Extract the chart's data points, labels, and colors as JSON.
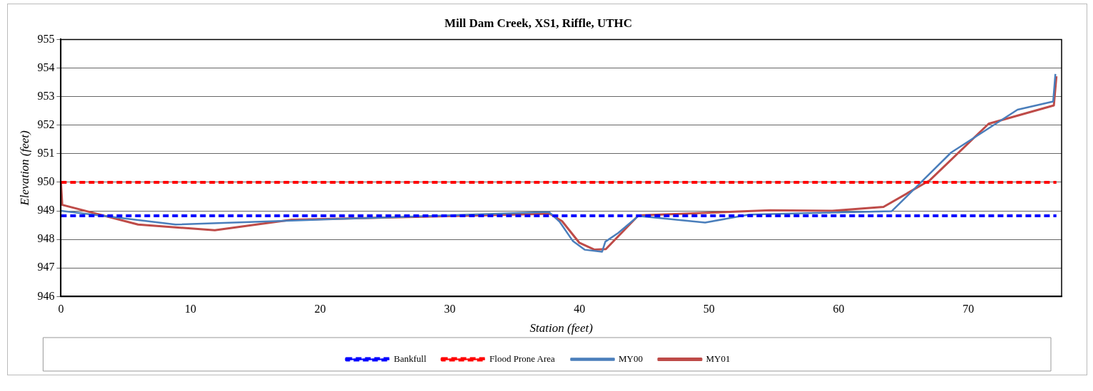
{
  "chart_data": {
    "type": "line",
    "title": "Mill Dam Creek, XS1, Riffle, UTHC",
    "xlabel": "Station (feet)",
    "ylabel": "Elevation (feet)",
    "xlim": [
      0,
      77.2
    ],
    "xticks": [
      0,
      10,
      20,
      30,
      40,
      50,
      60,
      70
    ],
    "ylim": [
      946,
      955
    ],
    "yticks": [
      946,
      947,
      948,
      949,
      950,
      951,
      952,
      953,
      954,
      955
    ],
    "grid": "y",
    "legend": "bottom",
    "marker": "none",
    "series": [
      {
        "name": "Bankfull",
        "color": "#0000ff",
        "line_style": "dashed",
        "x": [
          0,
          76.8
        ],
        "values": [
          948.83,
          948.83
        ]
      },
      {
        "name": "Flood Prone Area",
        "color": "#ff0000",
        "line_style": "dashed",
        "x": [
          0,
          76.8
        ],
        "values": [
          950,
          950
        ]
      },
      {
        "name": "MY00",
        "color": "#4a7ebb",
        "line_style": "solid",
        "x": [
          0,
          8.84,
          17.8,
          37.66,
          38.47,
          39.5,
          40.4,
          41.75,
          42.0,
          43.0,
          44.55,
          49.7,
          53.1,
          64.1,
          68.67,
          73.8,
          76.55,
          76.72
        ],
        "values": [
          949.0,
          948.52,
          948.66,
          948.96,
          948.62,
          947.94,
          947.64,
          947.57,
          947.92,
          948.23,
          948.82,
          948.59,
          948.87,
          948.99,
          951.04,
          952.54,
          952.83,
          953.79
        ]
      },
      {
        "name": "MY01",
        "color": "#be4b48",
        "line_style": "solid",
        "x": [
          0,
          0.1,
          5.95,
          11.87,
          17.8,
          37.7,
          38.66,
          40.0,
          41.17,
          42.04,
          44.55,
          54.7,
          59.5,
          63.46,
          67.0,
          71.57,
          76.6,
          76.8
        ],
        "values": [
          950.0,
          949.21,
          948.52,
          948.32,
          948.69,
          948.9,
          948.64,
          947.88,
          947.64,
          947.66,
          948.84,
          949.02,
          949.0,
          949.14,
          950.06,
          952.05,
          952.69,
          953.71
        ]
      }
    ]
  }
}
